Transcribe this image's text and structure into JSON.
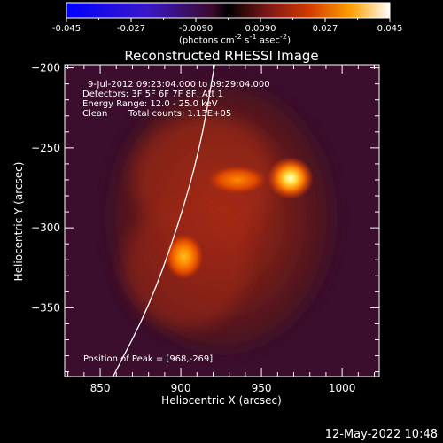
{
  "chart_data": {
    "type": "heatmap",
    "title": "Reconstructed RHESSI Image",
    "xlabel": "Heliocentric X (arcsec)",
    "ylabel": "Heliocentric Y (arcsec)",
    "xlim": [
      828,
      1023
    ],
    "ylim": [
      -393,
      -198
    ],
    "xticks": [
      850,
      900,
      950,
      1000
    ],
    "yticks": [
      -200,
      -250,
      -300,
      -350
    ],
    "colorbar": {
      "range": [
        -0.045,
        0.045
      ],
      "ticks": [
        "-0.045",
        "-0.027",
        "-0.0090",
        "0.0090",
        "0.027",
        "0.045"
      ],
      "label": "(photons cm<sup>-2</sup> s<sup>-1</sup> asec<sup>-2</sup>)",
      "colormap": [
        "#000000",
        "#0000ff",
        "#5a0b72",
        "#8a1a1a",
        "#d23a00",
        "#ff8a00",
        "#ffee55",
        "#ffffff"
      ]
    },
    "annotations": {
      "time": "9-Jul-2012 09:23:04.000 to 09:29:04.000",
      "detectors": "Detectors: 3F 5F 6F 7F 8F, Att 1",
      "energy": "Energy Range: 12.0 - 25.0 keV",
      "clean": "Clean",
      "counts": "Total counts: 1.13E+05",
      "peak": "Position of Peak = [968,-269]"
    },
    "sources": [
      {
        "x": 968,
        "y": -269,
        "peak": 0.045
      },
      {
        "x": 902,
        "y": -318,
        "peak": 0.031
      },
      {
        "x": 935,
        "y": -270,
        "peak": 0.026
      }
    ],
    "limb_curve": [
      [
        858,
        -393
      ],
      [
        880,
        -350
      ],
      [
        898,
        -300
      ],
      [
        912,
        -250
      ],
      [
        921,
        -198
      ]
    ],
    "timestamp": "12-May-2022 10:48"
  }
}
